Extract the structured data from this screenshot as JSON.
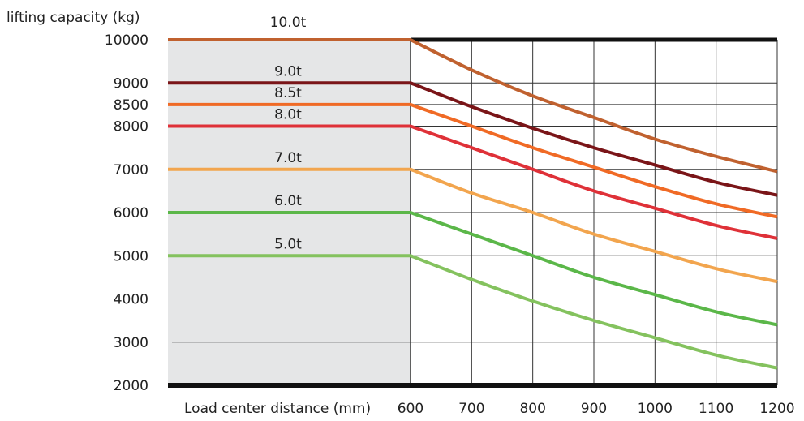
{
  "chart_data": {
    "type": "line",
    "title": "",
    "ylabel": "lifting capacity (kg)",
    "xlabel": "Load center distance (mm)",
    "x_ticks": [
      600,
      700,
      800,
      900,
      1000,
      1100,
      1200
    ],
    "y_ticks": [
      2000,
      3000,
      4000,
      5000,
      6000,
      7000,
      8000,
      8500,
      9000,
      10000
    ],
    "xlim": [
      600,
      1200
    ],
    "ylim": [
      2000,
      10000
    ],
    "grid": true,
    "shaded_region": {
      "x_from": 0,
      "x_to": 600,
      "color": "#e5e6e7"
    },
    "series": [
      {
        "name": "10.0t",
        "color": "#c0612f",
        "x": [
          0,
          600,
          700,
          800,
          900,
          1000,
          1100,
          1200
        ],
        "y": [
          10000,
          10000,
          9300,
          8700,
          8200,
          7700,
          7300,
          6950
        ]
      },
      {
        "name": "9.0t",
        "color": "#7a1518",
        "x": [
          0,
          600,
          700,
          800,
          900,
          1000,
          1100,
          1200
        ],
        "y": [
          9000,
          9000,
          8450,
          7950,
          7500,
          7100,
          6700,
          6400
        ]
      },
      {
        "name": "8.5t",
        "color": "#f06a25",
        "x": [
          0,
          600,
          700,
          800,
          900,
          1000,
          1100,
          1200
        ],
        "y": [
          8500,
          8500,
          8000,
          7500,
          7050,
          6600,
          6200,
          5900
        ]
      },
      {
        "name": "8.0t",
        "color": "#df3138",
        "x": [
          0,
          600,
          700,
          800,
          900,
          1000,
          1100,
          1200
        ],
        "y": [
          8000,
          8000,
          7500,
          7000,
          6500,
          6100,
          5700,
          5400
        ]
      },
      {
        "name": "7.0t",
        "color": "#f2a54e",
        "x": [
          0,
          600,
          700,
          800,
          900,
          1000,
          1100,
          1200
        ],
        "y": [
          7000,
          7000,
          6450,
          6000,
          5500,
          5100,
          4700,
          4400
        ]
      },
      {
        "name": "6.0t",
        "color": "#5bb749",
        "x": [
          0,
          600,
          700,
          800,
          900,
          1000,
          1100,
          1200
        ],
        "y": [
          6000,
          6000,
          5500,
          5000,
          4500,
          4100,
          3700,
          3400
        ]
      },
      {
        "name": "5.0t",
        "color": "#84c25e",
        "x": [
          0,
          600,
          700,
          800,
          900,
          1000,
          1100,
          1200
        ],
        "y": [
          5000,
          5000,
          4450,
          3950,
          3500,
          3100,
          2700,
          2400
        ]
      }
    ]
  }
}
